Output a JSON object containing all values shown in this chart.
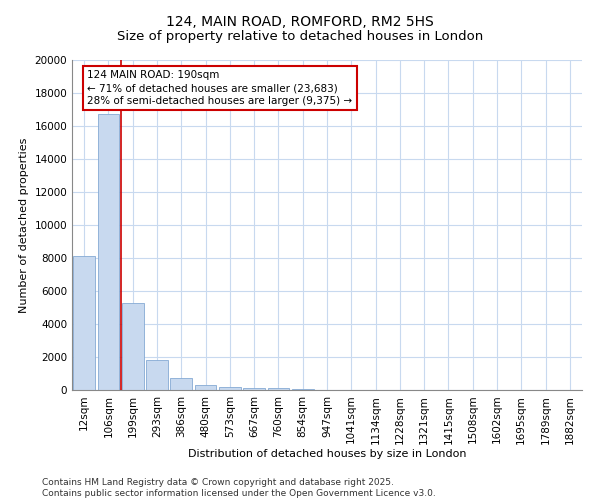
{
  "title": "124, MAIN ROAD, ROMFORD, RM2 5HS",
  "subtitle": "Size of property relative to detached houses in London",
  "xlabel": "Distribution of detached houses by size in London",
  "ylabel": "Number of detached properties",
  "categories": [
    "12sqm",
    "106sqm",
    "199sqm",
    "293sqm",
    "386sqm",
    "480sqm",
    "573sqm",
    "667sqm",
    "760sqm",
    "854sqm",
    "947sqm",
    "1041sqm",
    "1134sqm",
    "1228sqm",
    "1321sqm",
    "1415sqm",
    "1508sqm",
    "1602sqm",
    "1695sqm",
    "1789sqm",
    "1882sqm"
  ],
  "values": [
    8100,
    16700,
    5300,
    1800,
    750,
    300,
    200,
    150,
    100,
    50,
    0,
    0,
    0,
    0,
    0,
    0,
    0,
    0,
    0,
    0,
    0
  ],
  "bar_color": "#c8d9ef",
  "bar_edge_color": "#85aad4",
  "vline_color": "#cc0000",
  "vline_position": 1.5,
  "annotation_text": "124 MAIN ROAD: 190sqm\n← 71% of detached houses are smaller (23,683)\n28% of semi-detached houses are larger (9,375) →",
  "annotation_box_color": "#cc0000",
  "ylim": [
    0,
    20000
  ],
  "yticks": [
    0,
    2000,
    4000,
    6000,
    8000,
    10000,
    12000,
    14000,
    16000,
    18000,
    20000
  ],
  "footer_line1": "Contains HM Land Registry data © Crown copyright and database right 2025.",
  "footer_line2": "Contains public sector information licensed under the Open Government Licence v3.0.",
  "background_color": "#ffffff",
  "grid_color": "#c8d9ef",
  "title_fontsize": 10,
  "axis_label_fontsize": 8,
  "tick_fontsize": 7.5,
  "annotation_fontsize": 7.5,
  "footer_fontsize": 6.5
}
